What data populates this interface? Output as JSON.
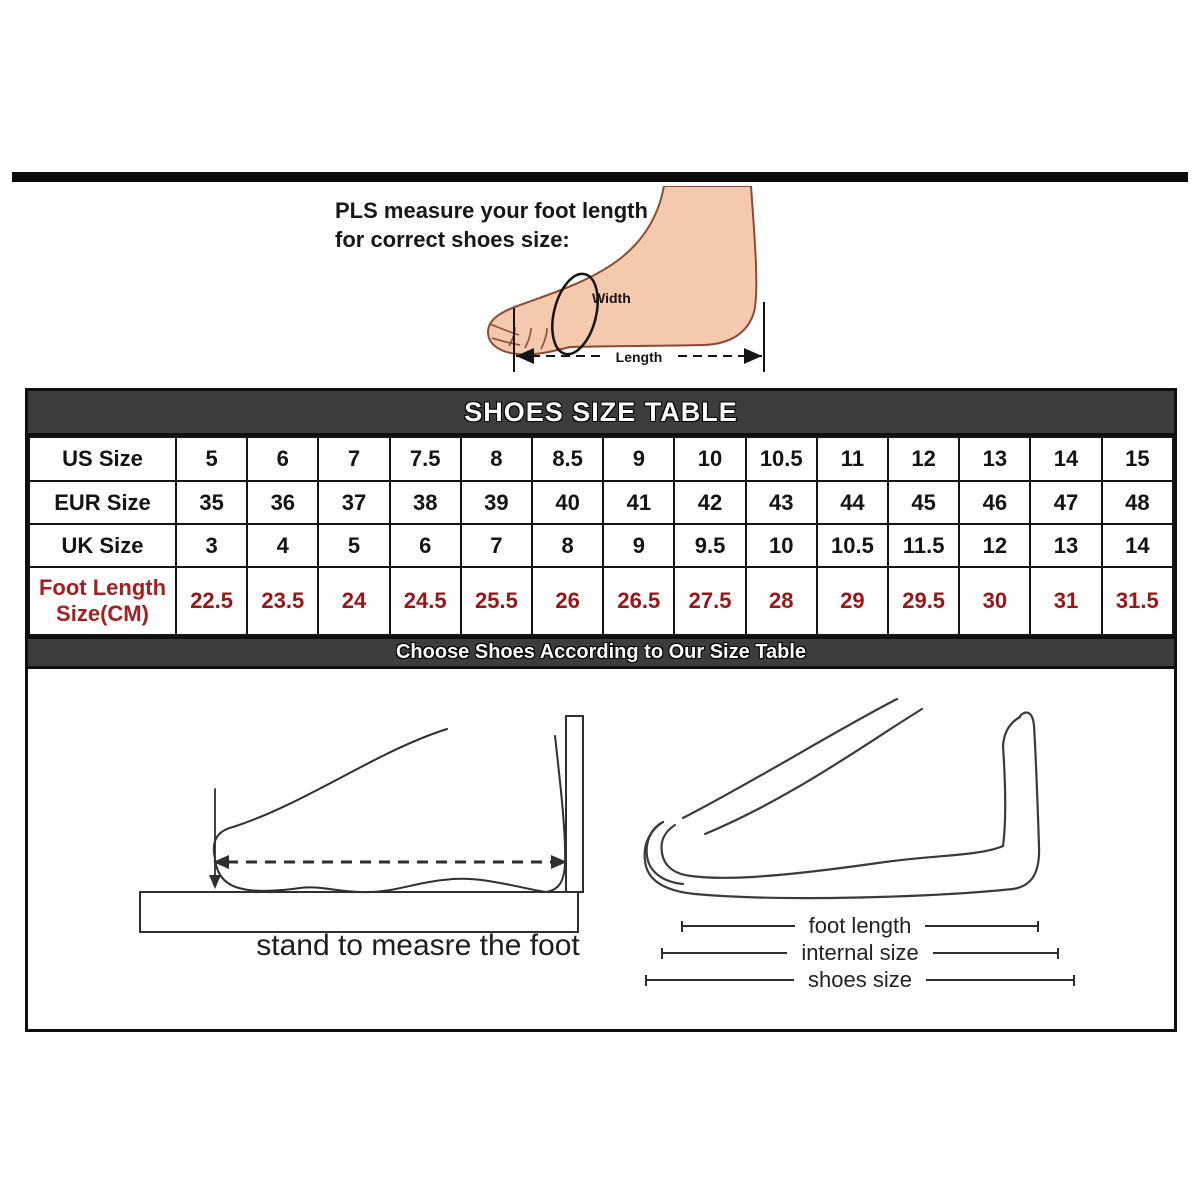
{
  "intro": {
    "line1": "PLS measure your foot length",
    "line2": "for correct shoes size:"
  },
  "foot_diagram": {
    "width_label": "Width",
    "length_label": "Length"
  },
  "size_table": {
    "title": "SHOES SIZE TABLE",
    "rows": [
      {
        "label": "US Size",
        "red": false,
        "values": [
          "5",
          "6",
          "7",
          "7.5",
          "8",
          "8.5",
          "9",
          "10",
          "10.5",
          "11",
          "12",
          "13",
          "14",
          "15"
        ]
      },
      {
        "label": "EUR Size",
        "red": false,
        "values": [
          "35",
          "36",
          "37",
          "38",
          "39",
          "40",
          "41",
          "42",
          "43",
          "44",
          "45",
          "46",
          "47",
          "48"
        ]
      },
      {
        "label": "UK Size",
        "red": false,
        "values": [
          "3",
          "4",
          "5",
          "6",
          "7",
          "8",
          "9",
          "9.5",
          "10",
          "10.5",
          "11.5",
          "12",
          "13",
          "14"
        ]
      },
      {
        "label": "Foot Length Size(CM)",
        "red": true,
        "values": [
          "22.5",
          "23.5",
          "24",
          "24.5",
          "25.5",
          "26",
          "26.5",
          "27.5",
          "28",
          "29",
          "29.5",
          "30",
          "31",
          "31.5"
        ]
      }
    ]
  },
  "banner": {
    "text": "Choose Shoes According to Our Size Table"
  },
  "diagrams": {
    "left_caption": "stand to measre the foot",
    "right_measures": [
      "foot length",
      "internal size",
      "shoes size"
    ]
  },
  "colors": {
    "band_bg": "#3c3c3c",
    "band_text": "#ffffff",
    "red_values": "#9c1414",
    "red_label": "#a32020",
    "border": "#0f0f0f",
    "skin": "#f4c9ad",
    "skin_outline": "#8b4a33"
  },
  "chart_data": {
    "type": "table",
    "title": "SHOES SIZE TABLE",
    "row_headers": [
      "US Size",
      "EUR Size",
      "UK Size",
      "Foot Length Size(CM)"
    ],
    "rows": [
      [
        "5",
        "6",
        "7",
        "7.5",
        "8",
        "8.5",
        "9",
        "10",
        "10.5",
        "11",
        "12",
        "13",
        "14",
        "15"
      ],
      [
        "35",
        "36",
        "37",
        "38",
        "39",
        "40",
        "41",
        "42",
        "43",
        "44",
        "45",
        "46",
        "47",
        "48"
      ],
      [
        "3",
        "4",
        "5",
        "6",
        "7",
        "8",
        "9",
        "9.5",
        "10",
        "10.5",
        "11.5",
        "12",
        "13",
        "14"
      ],
      [
        "22.5",
        "23.5",
        "24",
        "24.5",
        "25.5",
        "26",
        "26.5",
        "27.5",
        "28",
        "29",
        "29.5",
        "30",
        "31",
        "31.5"
      ]
    ],
    "notes": [
      "Choose Shoes According to Our Size Table",
      "stand to measre the foot",
      "foot length",
      "internal size",
      "shoes size"
    ]
  }
}
